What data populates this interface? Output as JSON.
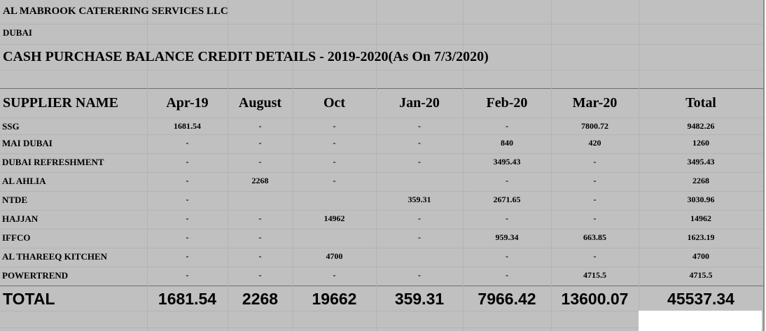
{
  "company": "AL MABROOK CATERERING SERVICES  LLC",
  "location": "DUBAI",
  "title": "CASH PURCHASE BALANCE CREDIT DETAILS - 2019-2020(As On 7/3/2020)",
  "table": {
    "headers": [
      "SUPPLIER NAME",
      "Apr-19",
      "August",
      "Oct",
      "Jan-20",
      "Feb-20",
      "Mar-20",
      "Total"
    ],
    "rows": [
      [
        "SSG",
        "1681.54",
        "-",
        "-",
        "-",
        "-",
        "7800.72",
        "9482.26"
      ],
      [
        "MAI DUBAI",
        "-",
        "-",
        "-",
        "-",
        "840",
        "420",
        "1260"
      ],
      [
        "DUBAI REFRESHMENT",
        "-",
        "-",
        "-",
        "-",
        "3495.43",
        "-",
        "3495.43"
      ],
      [
        "AL AHLIA",
        "-",
        "2268",
        "-",
        "",
        "-",
        "-",
        "2268"
      ],
      [
        "NTDE",
        "-",
        "",
        "",
        "359.31",
        "2671.65",
        "-",
        "3030.96"
      ],
      [
        "HAJJAN",
        "-",
        "-",
        "14962",
        "-",
        "-",
        "-",
        "14962"
      ],
      [
        "IFFCO",
        "-",
        "-",
        "",
        "-",
        "959.34",
        "663.85",
        "1623.19"
      ],
      [
        "AL THAREEQ KITCHEN",
        "-",
        "-",
        "4700",
        "",
        "-",
        "-",
        "4700"
      ],
      [
        "POWERTREND",
        "-",
        "-",
        "-",
        "-",
        "-",
        "4715.5",
        "4715.5"
      ]
    ],
    "totals": [
      "TOTAL",
      "1681.54",
      "2268",
      "19662",
      "359.31",
      "7966.42",
      "13600.07",
      "45537.34"
    ]
  }
}
